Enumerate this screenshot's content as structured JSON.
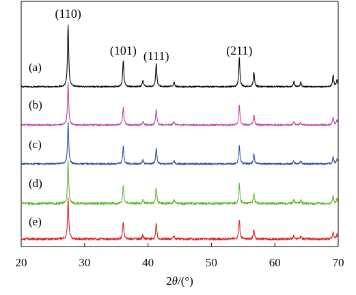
{
  "chart_data": {
    "type": "line",
    "xlabel": "2θ/(°)",
    "xlabel_parts": {
      "pre": "2",
      "theta": "θ",
      "post": "/(°)"
    },
    "xlim": [
      20,
      70
    ],
    "xticks": [
      "20",
      "30",
      "40",
      "50",
      "60",
      "70"
    ],
    "ylabel": "",
    "y_axis": "none",
    "grid": false,
    "legend": "none",
    "peak_labels": [
      {
        "text": "(110)",
        "x": 27.4
      },
      {
        "text": "(101)",
        "x": 36.1
      },
      {
        "text": "(111)",
        "x": 41.3
      },
      {
        "text": "(211)",
        "x": 54.4
      }
    ],
    "peaks": [
      {
        "x": 27.4,
        "h": 1.0
      },
      {
        "x": 36.1,
        "h": 0.43
      },
      {
        "x": 39.2,
        "h": 0.1
      },
      {
        "x": 41.3,
        "h": 0.38
      },
      {
        "x": 44.1,
        "h": 0.08
      },
      {
        "x": 54.4,
        "h": 0.47
      },
      {
        "x": 56.7,
        "h": 0.24
      },
      {
        "x": 63.0,
        "h": 0.08
      },
      {
        "x": 64.1,
        "h": 0.07
      },
      {
        "x": 69.2,
        "h": 0.18
      },
      {
        "x": 69.8,
        "h": 0.11
      }
    ],
    "series": [
      {
        "label": "(a)",
        "color": "#000000",
        "noise": 0.012
      },
      {
        "label": "(b)",
        "color": "#c040a8",
        "noise": 0.02
      },
      {
        "label": "(c)",
        "color": "#2a4fa8",
        "noise": 0.022
      },
      {
        "label": "(d)",
        "color": "#62b830",
        "noise": 0.03
      },
      {
        "label": "(e)",
        "color": "#e02020",
        "noise": 0.03
      }
    ]
  }
}
